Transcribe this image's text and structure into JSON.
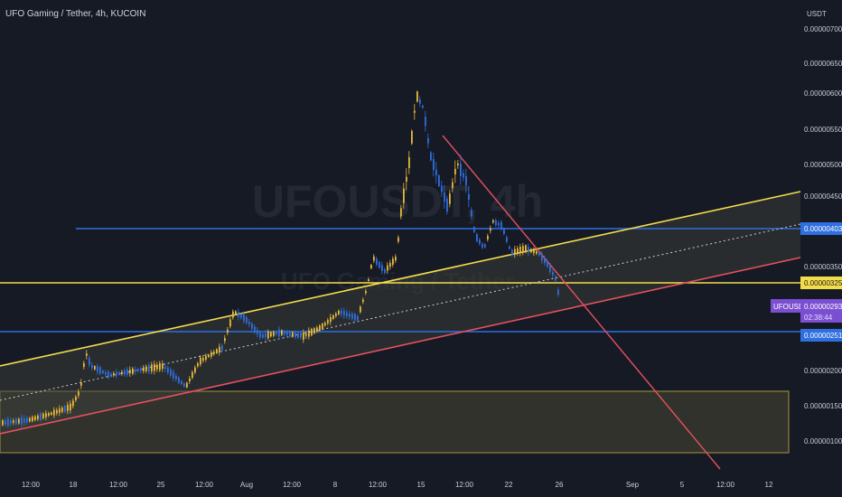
{
  "header": {
    "title": "UFO Gaming / Tether, 4h, KUCOIN"
  },
  "watermark": {
    "main": "UFOUSDT, 4h",
    "sub": "UFO Gaming / Tether"
  },
  "price_axis": {
    "unit": "USDT",
    "ticks": [
      "0.000007000",
      "0.000006500",
      "0.000006000",
      "0.000005500",
      "0.000005000",
      "0.000004500",
      "0.000003500",
      "0.000002000",
      "0.000001500",
      "0.000001000"
    ]
  },
  "time_axis": {
    "ticks": [
      "12:00",
      "18",
      "12:00",
      "25",
      "12:00",
      "Aug",
      "12:00",
      "8",
      "12:00",
      "15",
      "12:00",
      "22",
      "26",
      "Sep",
      "5",
      "12:00",
      "12"
    ]
  },
  "badges": {
    "blue_upper": "0.000004032",
    "yellow": "0.000003253",
    "symbol": "UFOUSDT",
    "last_price": "0.000002938",
    "countdown": "02:38:44",
    "blue_lower": "0.000002514"
  },
  "colors": {
    "background": "#161a25",
    "bull_candle": "#e9b83a",
    "bear_candle": "#2f6fe0",
    "yellow_line": "#f3dc4c",
    "red_line": "#e5515e",
    "blue_line": "#2f6fe0",
    "symbol_badge": "#7b4fd1"
  },
  "chart_data": {
    "type": "candlestick",
    "title": "UFO Gaming / Tether, 4h, KUCOIN",
    "ylabel": "USDT",
    "ylim": [
      5e-07,
      7.1e-06
    ],
    "close_path": [
      [
        "Jul 14",
        1.2e-06
      ],
      [
        "Jul 16",
        1.3e-06
      ],
      [
        "Jul 17",
        1.4e-06
      ],
      [
        "Jul 18",
        1.7e-06
      ],
      [
        "Jul 18 12:00",
        2.2e-06
      ],
      [
        "Jul 19",
        2e-06
      ],
      [
        "Jul 21",
        2e-06
      ],
      [
        "Jul 23",
        2.1e-06
      ],
      [
        "Jul 25",
        2e-06
      ],
      [
        "Jul 26",
        1.8e-06
      ],
      [
        "Jul 27",
        2.1e-06
      ],
      [
        "Jul 28",
        2.4e-06
      ],
      [
        "Jul 30",
        3e-06
      ],
      [
        "Aug 1",
        2.6e-06
      ],
      [
        "Aug 3",
        2.7e-06
      ],
      [
        "Aug 5",
        2.7e-06
      ],
      [
        "Aug 7",
        2.7e-06
      ],
      [
        "Aug 8",
        2.9e-06
      ],
      [
        "Aug 10",
        2.9e-06
      ],
      [
        "Aug 11",
        3.5e-06
      ],
      [
        "Aug 12",
        3.4e-06
      ],
      [
        "Aug 13",
        4.5e-06
      ],
      [
        "Aug 14",
        5.7e-06
      ],
      [
        "Aug 15",
        6.2e-06
      ],
      [
        "Aug 16",
        5e-06
      ],
      [
        "Aug 17",
        4.7e-06
      ],
      [
        "Aug 17 12:00",
        5.1e-06
      ],
      [
        "Aug 18",
        4.8e-06
      ],
      [
        "Aug 19",
        4.1e-06
      ],
      [
        "Aug 20",
        3.7e-06
      ],
      [
        "Aug 21",
        4.1e-06
      ],
      [
        "Aug 22",
        3.9e-06
      ],
      [
        "Aug 23",
        3.7e-06
      ],
      [
        "Aug 24",
        3.6e-06
      ],
      [
        "Aug 25",
        3.4e-06
      ],
      [
        "Aug 26",
        2.9e-06
      ]
    ],
    "levels": {
      "blue_upper": 4.032e-06,
      "yellow": 3.253e-06,
      "last_price": 2.938e-06,
      "blue_lower": 2.514e-06
    }
  }
}
